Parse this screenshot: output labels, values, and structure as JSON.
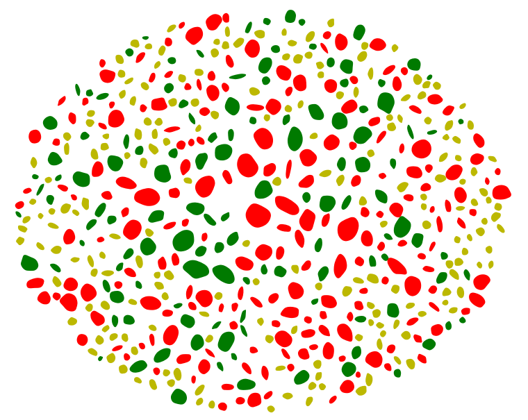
{
  "scene": {
    "description_free": true,
    "background_color": "#ffffff",
    "blob_colors": {
      "red": "#ff0000",
      "green": "#007a00",
      "olive": "#bcb800"
    },
    "color_mix": {
      "red": 0.46,
      "green": 0.34,
      "olive": 0.2
    }
  }
}
